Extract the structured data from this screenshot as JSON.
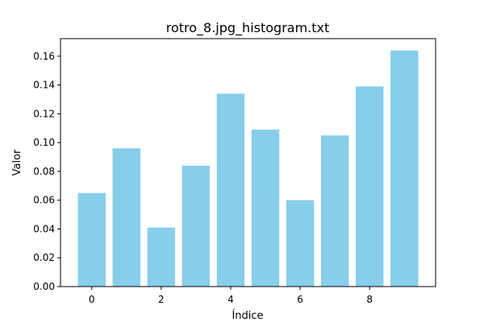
{
  "chart_data": {
    "type": "bar",
    "title": "rotro_8.jpg_histogram.txt",
    "xlabel": "Índice",
    "ylabel": "Valor",
    "x": [
      0,
      1,
      2,
      3,
      4,
      5,
      6,
      7,
      8,
      9
    ],
    "values": [
      0.065,
      0.096,
      0.041,
      0.084,
      0.134,
      0.109,
      0.06,
      0.105,
      0.139,
      0.164
    ],
    "bar_color": "#87CEEB",
    "xlim": [
      -0.9,
      9.9
    ],
    "ylim": [
      0,
      0.1722
    ],
    "x_ticks": [
      0,
      2,
      4,
      6,
      8
    ],
    "y_ticks": [
      0.0,
      0.02,
      0.04,
      0.06,
      0.08,
      0.1,
      0.12,
      0.14,
      0.16
    ],
    "y_tick_labels": [
      "0.00",
      "0.02",
      "0.04",
      "0.06",
      "0.08",
      "0.10",
      "0.12",
      "0.14",
      "0.16"
    ],
    "x_tick_labels": [
      "0",
      "2",
      "4",
      "6",
      "8"
    ],
    "grid": false,
    "legend": "none"
  }
}
